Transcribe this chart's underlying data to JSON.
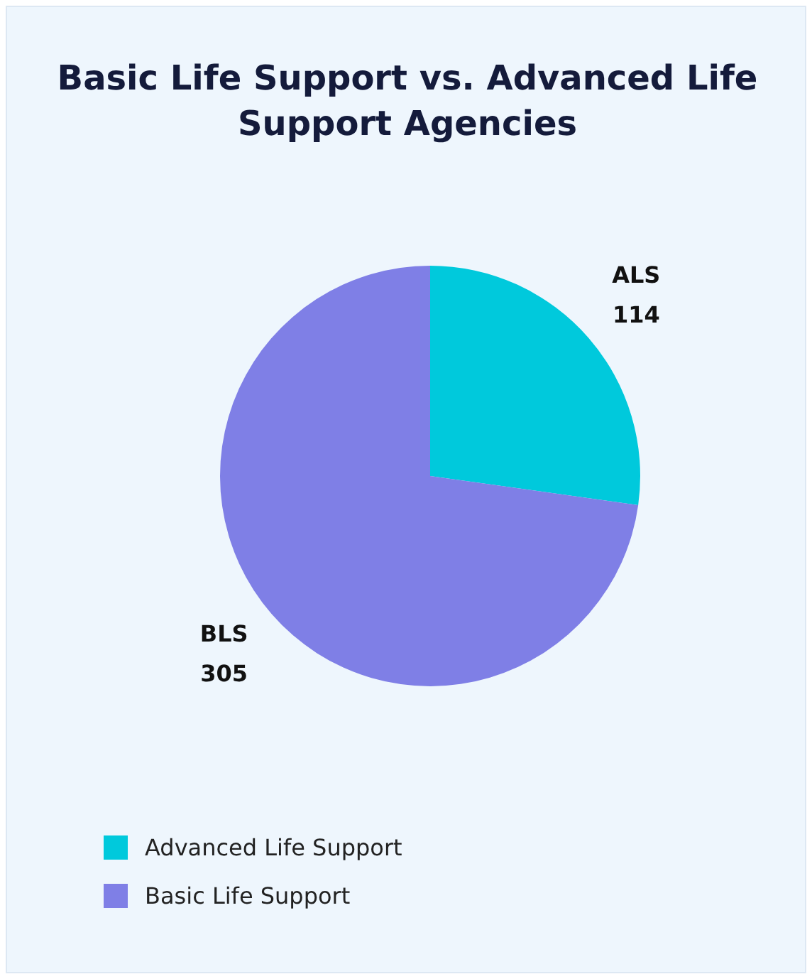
{
  "chart_data": {
    "type": "pie",
    "title": "Basic Life Support vs. Advanced Life Support Agencies",
    "categories": [
      "Advanced Life Support",
      "Basic Life Support"
    ],
    "values": [
      114,
      305
    ],
    "colors": [
      "#00c9dc",
      "#7f7fe6"
    ],
    "value_labels": [
      "ALS\n114",
      "BLS\n305"
    ],
    "legend": "bottom left"
  }
}
